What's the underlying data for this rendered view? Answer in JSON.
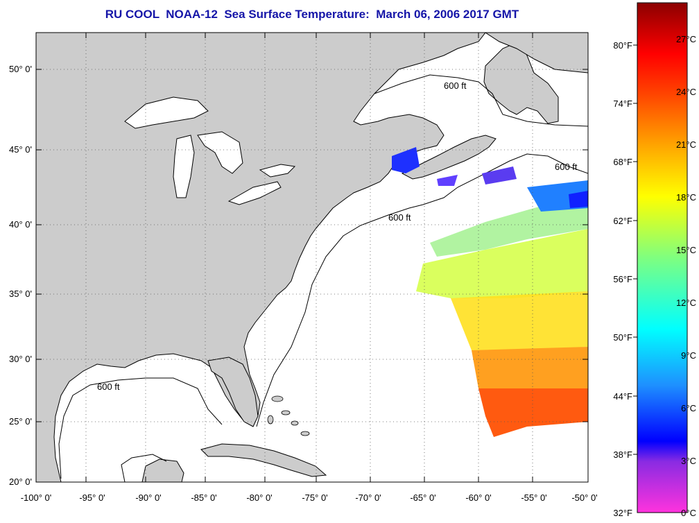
{
  "title": "RU COOL  NOAA-12  Sea Surface Temperature:  March 06, 2006 2017 GMT",
  "map": {
    "lat_labels": [
      "50° 0'",
      "45° 0'",
      "40° 0'",
      "35° 0'",
      "30° 0'",
      "25° 0'",
      "20° 0'"
    ],
    "lon_labels": [
      "-100° 0'",
      "-95° 0'",
      "-90° 0'",
      "-85° 0'",
      "-80° 0'",
      "-75° 0'",
      "-70° 0'",
      "-65° 0'",
      "-60° 0'",
      "-55° 0'",
      "-50° 0'"
    ],
    "contour_label": "600 ft",
    "land_color": "#cccccc",
    "ocean_color": "#ffffff"
  },
  "colorbar": {
    "fahrenheit_labels": [
      "80°F",
      "74°F",
      "68°F",
      "62°F",
      "56°F",
      "50°F",
      "44°F",
      "38°F",
      "32°F"
    ],
    "celsius_labels": [
      "27°C",
      "24°C",
      "21°C",
      "18°C",
      "15°C",
      "12°C",
      "9°C",
      "6°C",
      "3°C",
      "0°C"
    ],
    "colors_bottom_to_top": [
      "#ff33dd",
      "#8a2be2",
      "#0000ff",
      "#00bfff",
      "#00ffff",
      "#7fff7f",
      "#ffff00",
      "#ff9900",
      "#ff3300",
      "#ff0000",
      "#8b0000"
    ]
  }
}
